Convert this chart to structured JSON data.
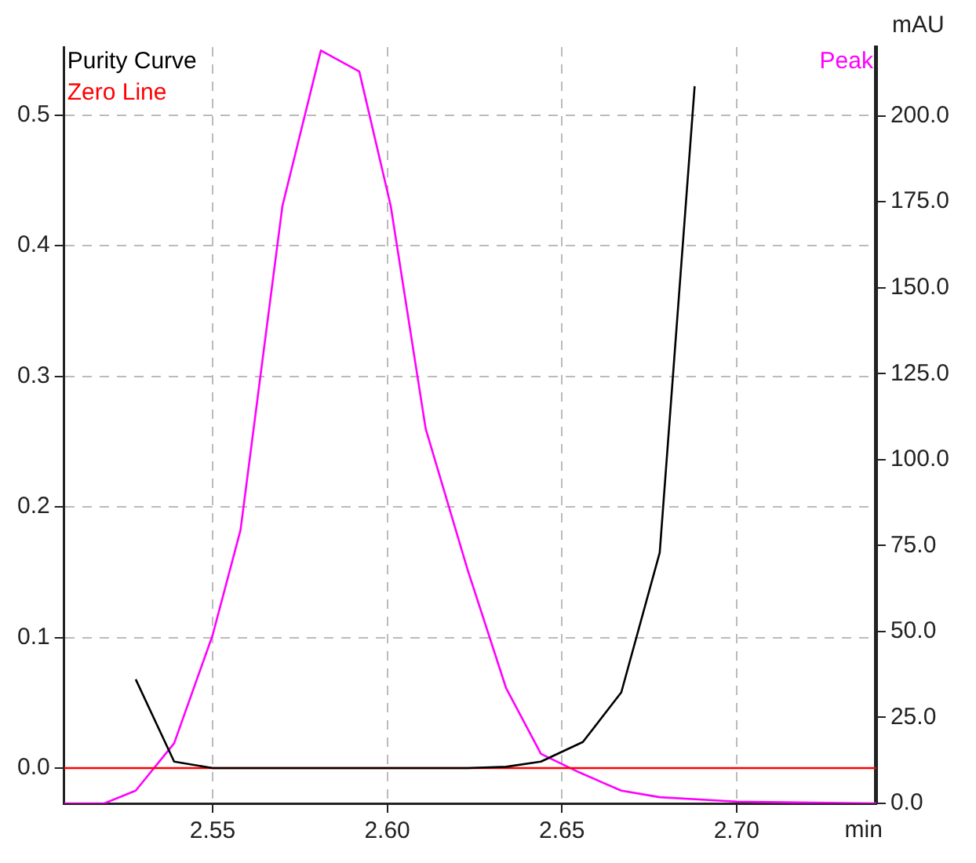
{
  "chart_data": {
    "type": "line",
    "xlabel": "min",
    "y2label": "mAU",
    "xlim": [
      2.5075,
      2.74
    ],
    "xticks": [
      {
        "value": 2.55,
        "label": "2.55"
      },
      {
        "value": 2.6,
        "label": "2.60"
      },
      {
        "value": 2.65,
        "label": "2.65"
      },
      {
        "value": 2.7,
        "label": "2.70"
      }
    ],
    "ylim": [
      -0.027,
      0.552
    ],
    "yticks": [
      {
        "value": 0,
        "label": "0.0"
      },
      {
        "value": 0.1,
        "label": "0.1"
      },
      {
        "value": 0.2,
        "label": "0.2"
      },
      {
        "value": 0.3,
        "label": "0.3"
      },
      {
        "value": 0.4,
        "label": "0.4"
      },
      {
        "value": 0.5,
        "label": "0.5"
      }
    ],
    "y2lim": [
      0,
      220
    ],
    "y2ticks": [
      {
        "value": 0,
        "label": "0.0"
      },
      {
        "value": 25,
        "label": "25.0"
      },
      {
        "value": 50,
        "label": "50.0"
      },
      {
        "value": 75,
        "label": "75.0"
      },
      {
        "value": 100,
        "label": "100.0"
      },
      {
        "value": 125,
        "label": "125.0"
      },
      {
        "value": 150,
        "label": "150.0"
      },
      {
        "value": 175,
        "label": "175.0"
      },
      {
        "value": 200,
        "label": "200.0"
      }
    ],
    "grid": true,
    "legend": "top left",
    "series": [
      {
        "name": "Purity Curve",
        "color": "#000000",
        "x": [
          2.528,
          2.539,
          2.55,
          2.623,
          2.634,
          2.644,
          2.656,
          2.667,
          2.678,
          2.688
        ],
        "values": [
          0.068,
          0.005,
          0.0,
          0.0,
          0.001,
          0.005,
          0.02,
          0.058,
          0.165,
          0.522
        ]
      },
      {
        "name": "Zero Line",
        "color": "#ff0000",
        "x": [
          2.5075,
          2.74
        ],
        "values": [
          0,
          0
        ]
      },
      {
        "name": "Peak",
        "color": "#ff00ff",
        "axis": "y2",
        "x": [
          2.5075,
          2.519,
          2.528,
          2.539,
          2.55,
          2.558,
          2.57,
          2.581,
          2.592,
          2.601,
          2.611,
          2.623,
          2.634,
          2.644,
          2.655,
          2.667,
          2.678,
          2.7,
          2.74
        ],
        "values": [
          0,
          0,
          3.7,
          17.5,
          48.9,
          79.5,
          173.8,
          219,
          212.9,
          173.8,
          109,
          68,
          33.6,
          14.4,
          9,
          3.7,
          1.8,
          0.5,
          0
        ]
      }
    ]
  }
}
